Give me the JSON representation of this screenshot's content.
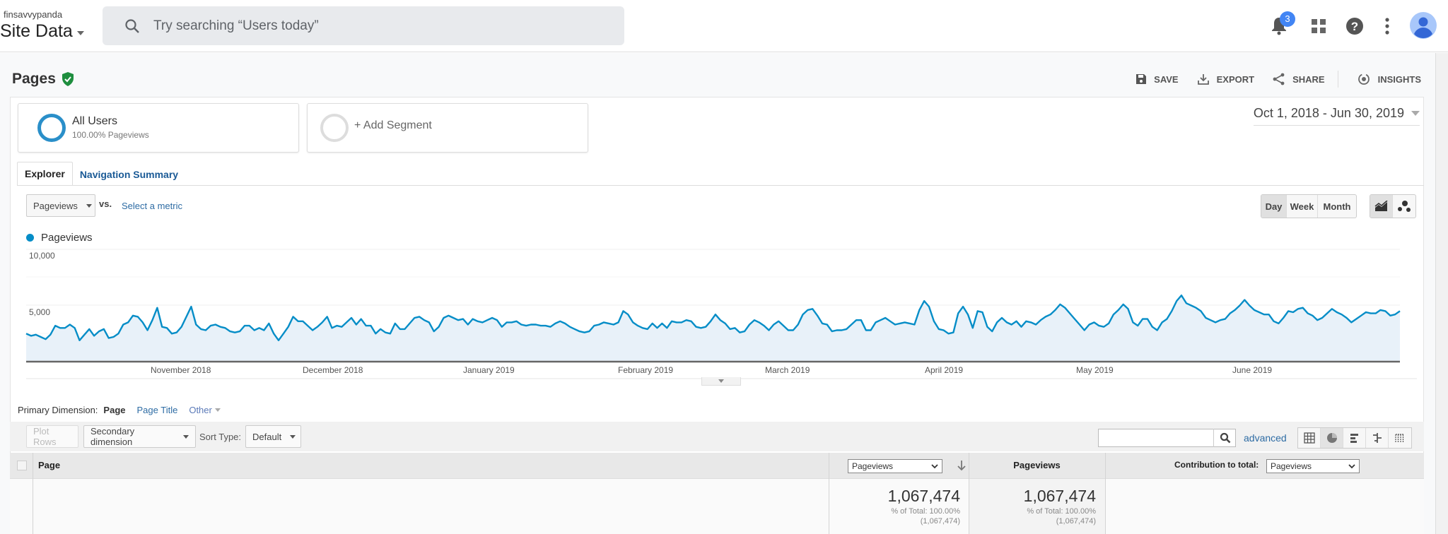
{
  "header": {
    "account": "finsavvypanda",
    "property": "Site Data",
    "search_placeholder": "Try searching “Users today”",
    "notifications_count": "3",
    "icons": [
      "bell-icon",
      "apps-grid-icon",
      "help-icon",
      "more-vert-icon",
      "avatar-icon"
    ]
  },
  "report": {
    "title": "Pages",
    "verified_icon": "shield-check-icon",
    "actions": [
      {
        "label": "SAVE",
        "icon": "save-icon"
      },
      {
        "label": "EXPORT",
        "icon": "export-icon"
      },
      {
        "label": "SHARE",
        "icon": "share-icon"
      },
      {
        "label": "INSIGHTS",
        "icon": "insights-icon"
      }
    ]
  },
  "segments": [
    {
      "title": "All Users",
      "subtitle": "100.00% Pageviews",
      "ring_color": "#2a8fc9"
    },
    {
      "title": "+ Add Segment",
      "ring_color": "#dddddd"
    }
  ],
  "date_range": "Oct 1, 2018 - Jun 30, 2019",
  "tabs": [
    {
      "label": "Explorer",
      "active": true
    },
    {
      "label": "Navigation Summary",
      "active": false
    }
  ],
  "chart_controls": {
    "metric": "Pageviews",
    "vs": "vs.",
    "select_metric": "Select a metric",
    "granularity": [
      "Day",
      "Week",
      "Month"
    ],
    "granularity_selected": "Day",
    "chart_types": [
      "line-chart-icon",
      "motion-chart-icon"
    ]
  },
  "chart_data": {
    "type": "area",
    "title": "",
    "legend": [
      "Pageviews"
    ],
    "series_color": "#058dc7",
    "xlabel": "",
    "ylabel": "",
    "ylim": [
      0,
      10000
    ],
    "y_ticks": [
      "5,000",
      "10,000"
    ],
    "x_ticks": [
      "November 2018",
      "December 2018",
      "January 2019",
      "February 2019",
      "March 2019",
      "April 2019",
      "May 2019",
      "June 2019"
    ],
    "x_range": [
      "Oct 1, 2018",
      "Jun 30, 2019"
    ],
    "series": [
      {
        "name": "Pageviews",
        "values": [
          2500,
          2300,
          2400,
          2200,
          2000,
          2400,
          3200,
          3000,
          3000,
          3300,
          3000,
          1900,
          2400,
          2900,
          2300,
          2700,
          2900,
          2100,
          2200,
          2500,
          3300,
          3500,
          4100,
          4000,
          3500,
          2800,
          3700,
          4800,
          3100,
          3000,
          2500,
          2600,
          3100,
          4000,
          4900,
          3300,
          2900,
          2800,
          3200,
          3300,
          3100,
          3000,
          2700,
          2600,
          2700,
          3200,
          3200,
          2800,
          3000,
          2800,
          3400,
          2500,
          1900,
          2500,
          3100,
          4000,
          3600,
          3600,
          3200,
          2800,
          3100,
          3500,
          4000,
          3000,
          3200,
          3100,
          3500,
          3900,
          3300,
          3800,
          3200,
          3200,
          2500,
          2900,
          2600,
          2500,
          3400,
          2900,
          2900,
          3400,
          3900,
          4000,
          3700,
          3500,
          2700,
          3100,
          3900,
          4100,
          3900,
          3700,
          3800,
          3300,
          3800,
          3600,
          3500,
          3700,
          3900,
          3700,
          3100,
          3500,
          3500,
          3600,
          3300,
          3200,
          3300,
          3300,
          3200,
          3200,
          3100,
          3400,
          3600,
          3400,
          3100,
          2900,
          2700,
          2600,
          2700,
          3200,
          3300,
          3500,
          3400,
          3300,
          3500,
          4500,
          4200,
          3500,
          3200,
          3000,
          2900,
          3400,
          3000,
          3400,
          3000,
          3600,
          3500,
          3500,
          3700,
          3600,
          3100,
          3000,
          3100,
          3600,
          4200,
          3700,
          3400,
          2900,
          3000,
          2600,
          2700,
          3300,
          3700,
          3500,
          3200,
          2800,
          3300,
          3600,
          3200,
          2800,
          2800,
          3300,
          4200,
          4600,
          4700,
          4100,
          3400,
          3300,
          2700,
          2800,
          2800,
          2900,
          3300,
          3700,
          3700,
          2800,
          2800,
          3500,
          3700,
          3900,
          3600,
          3300,
          3400,
          3500,
          3400,
          3300,
          4600,
          5400,
          4900,
          3600,
          2900,
          2800,
          2500,
          2600,
          4300,
          4900,
          4200,
          3000,
          4500,
          4400,
          3100,
          2700,
          3500,
          3900,
          3500,
          3300,
          3600,
          3100,
          3600,
          3500,
          3300,
          3700,
          4000,
          4200,
          4600,
          5100,
          4800,
          4300,
          3800,
          3300,
          2800,
          3300,
          3500,
          3200,
          3100,
          3400,
          4200,
          4600,
          5100,
          4700,
          3500,
          3200,
          3800,
          3800,
          3100,
          2800,
          3500,
          3800,
          4500,
          5400,
          5900,
          5200,
          5000,
          4800,
          4500,
          3900,
          3700,
          3500,
          3700,
          3800,
          4300,
          4600,
          5000,
          5500,
          5000,
          4600,
          4400,
          4200,
          4200,
          3600,
          3400,
          3900,
          4500,
          4400,
          4700,
          4800,
          4300,
          4100,
          3700,
          3900,
          4300,
          4700,
          4400,
          4200,
          3900,
          3500,
          3800,
          4100,
          4400,
          4300,
          4300,
          4600,
          4500,
          4100,
          4200,
          4500
        ]
      }
    ],
    "grid": true
  },
  "table_controls": {
    "primary_dimension_label": "Primary Dimension:",
    "primary_dimensions": [
      "Page",
      "Page Title",
      "Other"
    ],
    "primary_selected": "Page",
    "plot_rows": "Plot Rows",
    "secondary_dimension": "Secondary dimension",
    "sort_type_label": "Sort Type:",
    "sort_type": "Default",
    "search_value": "",
    "advanced": "advanced",
    "view_icons": [
      "table-view-icon",
      "percentage-view-icon",
      "performance-view-icon",
      "comparison-view-icon",
      "pivot-view-icon"
    ]
  },
  "table": {
    "columns": {
      "page": "Page",
      "metric_select": "Pageviews",
      "metric": "Pageviews",
      "contribution_label": "Contribution to total:",
      "contribution_select": "Pageviews"
    },
    "totals": {
      "primary": {
        "value": "1,067,474",
        "pct": "% of Total: 100.00%",
        "abs": "(1,067,474)"
      },
      "secondary": {
        "value": "1,067,474",
        "pct": "% of Total: 100.00%",
        "abs": "(1,067,474)"
      }
    }
  }
}
